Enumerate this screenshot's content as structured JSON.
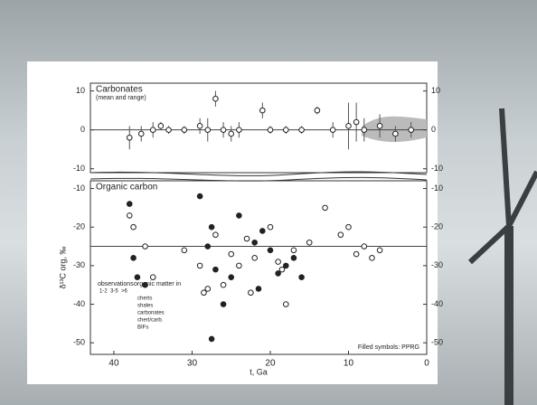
{
  "chart_data": [
    {
      "type": "scatter",
      "title": "Carbonates",
      "subtitle": "(mean and range)",
      "xlim": [
        43,
        0
      ],
      "ylim": [
        -11,
        12
      ],
      "yticks": [
        -10,
        0,
        10
      ],
      "reference_line": 0,
      "x": [
        38,
        36.5,
        35,
        34,
        33,
        31,
        29,
        28,
        27,
        26,
        25,
        24,
        21,
        20,
        18,
        16,
        14,
        12,
        10,
        9,
        8,
        6,
        4,
        2
      ],
      "values": [
        -2,
        -1,
        0,
        1,
        0,
        0,
        1,
        0,
        8,
        0,
        -1,
        0,
        5,
        0,
        0,
        0,
        5,
        0,
        1,
        2,
        0,
        1,
        -1,
        0
      ],
      "errors": [
        3,
        2,
        2,
        1,
        1,
        1,
        2,
        3,
        2,
        2,
        2,
        2,
        2,
        1,
        1,
        1,
        1,
        2,
        6,
        5,
        3,
        3,
        2,
        2
      ],
      "color": "#222"
    },
    {
      "type": "scatter",
      "title": "Organic carbon",
      "ylabel": "δ¹³C org, ‰",
      "xlabel": "t, Ga",
      "xlim": [
        43,
        0
      ],
      "xticks": [
        40,
        30,
        20,
        10,
        0
      ],
      "ylim": [
        -53,
        -8
      ],
      "yticks": [
        -50,
        -40,
        -30,
        -20,
        -10
      ],
      "reference_line": -25,
      "note": "Filled symbols: PPRG",
      "legend_title": "observations",
      "legend_columns": [
        "1-2",
        "3-5",
        ">6"
      ],
      "matter_title": "organic matter in",
      "matter": [
        "cherts",
        "shales",
        "carbonates",
        "chert/carb.",
        "BIFs"
      ],
      "series": [
        {
          "color": "#222",
          "filled": false,
          "x": [
            38,
            37.5,
            36,
            35,
            31,
            29,
            28,
            27,
            26,
            25,
            24,
            23,
            22,
            20,
            19,
            18,
            17,
            15,
            13,
            11,
            10,
            9,
            8,
            7,
            6,
            28.5,
            22.5,
            18.5
          ],
          "values": [
            -17,
            -20,
            -25,
            -33,
            -26,
            -30,
            -36,
            -22,
            -35,
            -27,
            -30,
            -23,
            -28,
            -20,
            -29,
            -40,
            -26,
            -24,
            -15,
            -22,
            -20,
            -27,
            -25,
            -28,
            -26,
            -37,
            -37,
            -31
          ]
        },
        {
          "color": "#222",
          "filled": true,
          "x": [
            38,
            37.5,
            37,
            36,
            29,
            28,
            27.5,
            27,
            26,
            25,
            24,
            22,
            21.5,
            21,
            20,
            19,
            18,
            17,
            16,
            27.5
          ],
          "values": [
            -14,
            -28,
            -33,
            -35,
            -12,
            -25,
            -20,
            -31,
            -40,
            -33,
            -17,
            -24,
            -36,
            -21,
            -26,
            -32,
            -30,
            -28,
            -33,
            -49
          ]
        }
      ]
    }
  ]
}
